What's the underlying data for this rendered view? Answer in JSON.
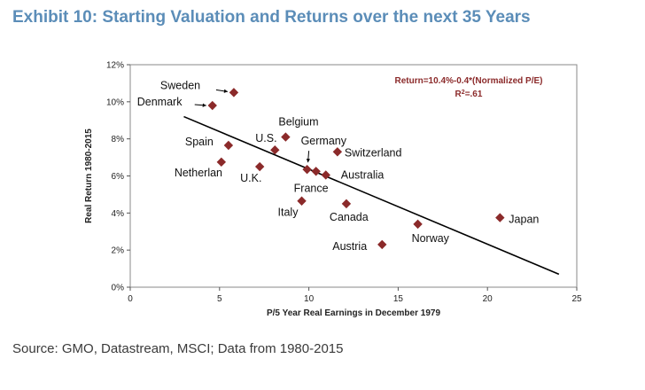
{
  "page": {
    "title": "Exhibit 10: Starting Valuation and Returns over the next 35 Years",
    "source": "Source: GMO, Datastream, MSCI; Data from 1980-2015"
  },
  "colors": {
    "title": "#5b8db8",
    "marker": "#8b2a2a",
    "equation": "#8b2a2a"
  },
  "chart_data": {
    "type": "scatter",
    "xlabel": "P/5 Year Real Earnings in December 1979",
    "ylabel": "Real Return 1980-2015",
    "xlim": [
      0,
      25
    ],
    "ylim": [
      0,
      12
    ],
    "xticks": [
      0,
      5,
      10,
      15,
      20,
      25
    ],
    "yticks": [
      0,
      2,
      4,
      6,
      8,
      10,
      12
    ],
    "y_tick_labels": [
      "0%",
      "2%",
      "4%",
      "6%",
      "8%",
      "10%",
      "12%"
    ],
    "points": [
      {
        "name": "Sweden",
        "x": 5.8,
        "y": 10.5
      },
      {
        "name": "Denmark",
        "x": 4.6,
        "y": 9.8
      },
      {
        "name": "Belgium",
        "x": 8.7,
        "y": 8.1
      },
      {
        "name": "U.S.",
        "x": 8.1,
        "y": 7.4
      },
      {
        "name": "Spain",
        "x": 5.5,
        "y": 7.65
      },
      {
        "name": "Netherlan",
        "x": 5.1,
        "y": 6.75
      },
      {
        "name": "U.K.",
        "x": 7.25,
        "y": 6.5
      },
      {
        "name": "Germany",
        "x": 9.9,
        "y": 6.35
      },
      {
        "name": "Switzerland",
        "x": 11.6,
        "y": 7.3
      },
      {
        "name": "France",
        "x": 10.4,
        "y": 6.25
      },
      {
        "name": "Australia",
        "x": 10.95,
        "y": 6.05
      },
      {
        "name": "Italy",
        "x": 9.6,
        "y": 4.65
      },
      {
        "name": "Canada",
        "x": 12.1,
        "y": 4.5
      },
      {
        "name": "Austria",
        "x": 14.1,
        "y": 2.3
      },
      {
        "name": "Norway",
        "x": 16.1,
        "y": 3.4
      },
      {
        "name": "Japan",
        "x": 20.7,
        "y": 3.75
      }
    ],
    "trendline": {
      "x": [
        3,
        24
      ],
      "y": [
        9.2,
        0.7
      ],
      "equation": "Return=10.4%-0.4*(Normalized P/E)",
      "r2_prefix": "R",
      "r2_sup": "2",
      "r2_value": "=.61"
    }
  }
}
